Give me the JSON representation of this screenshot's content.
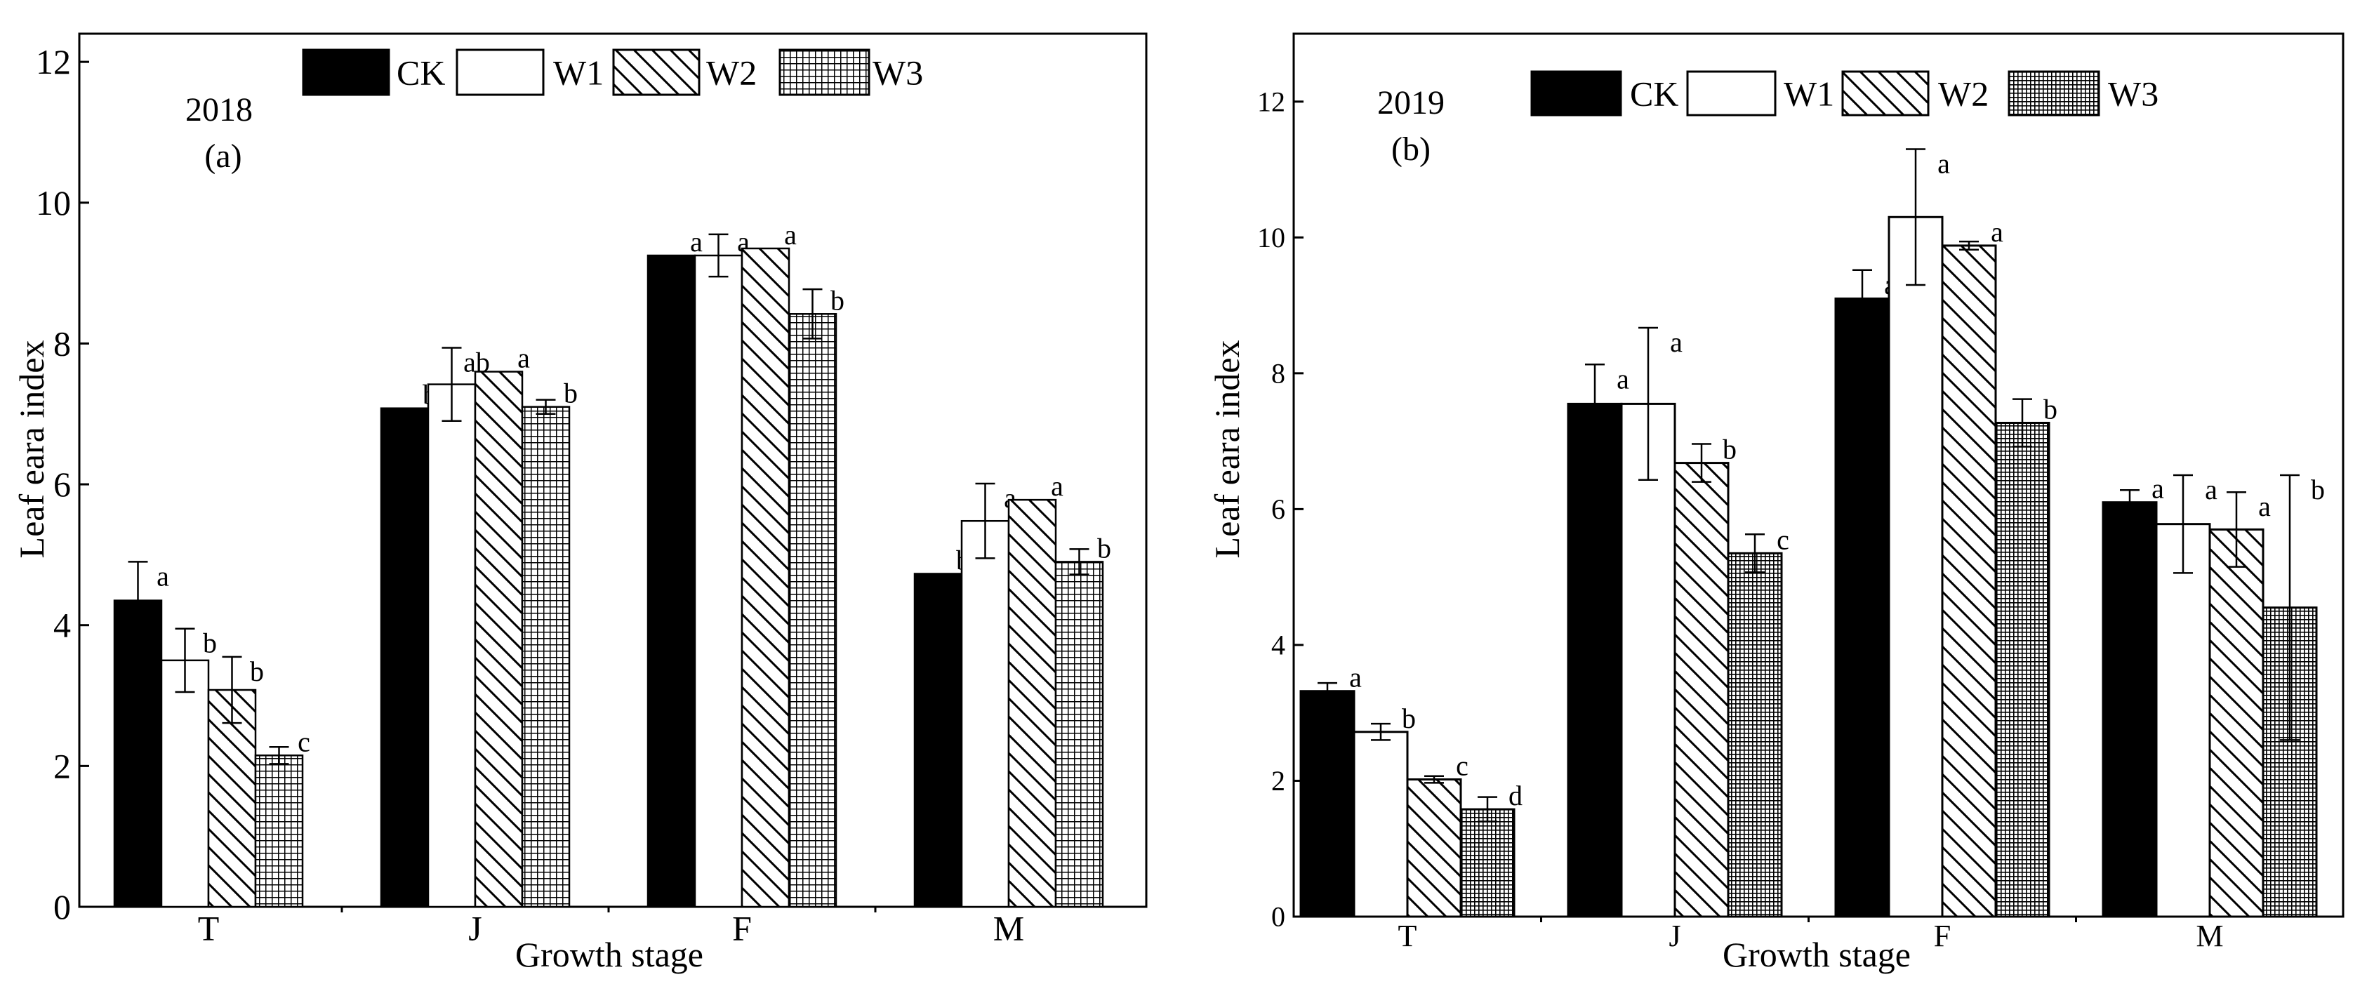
{
  "figure": {
    "groups": [
      "CK",
      "W1",
      "W2",
      "W3"
    ],
    "patterns": {
      "CK": "solid-black",
      "W1": "white",
      "W2": "diagonal-hatch",
      "W3": "grid-crosshatch"
    }
  },
  "chart_data": [
    {
      "type": "bar",
      "panel_label": "(a)",
      "year_label": "2018",
      "xlabel": "Growth stage",
      "ylabel": "Leaf eara index",
      "categories": [
        "T",
        "J",
        "F",
        "M"
      ],
      "ylim": [
        0,
        12.4
      ],
      "yticks": [
        0,
        2,
        4,
        6,
        8,
        10,
        12
      ],
      "ytick_labels": [
        "0",
        "2",
        "4",
        "6",
        "8",
        "10",
        "12"
      ],
      "legend": [
        "CK",
        "W1",
        "W2",
        "W3"
      ],
      "legend_position": "top",
      "series": [
        {
          "name": "CK",
          "values": [
            4.35,
            7.08,
            9.25,
            4.73
          ],
          "errors": [
            0.55,
            0,
            0,
            0
          ],
          "letters": [
            "a",
            "b",
            "a",
            "b"
          ]
        },
        {
          "name": "W1",
          "values": [
            3.5,
            7.42,
            9.25,
            5.48
          ],
          "errors": [
            0.45,
            0.52,
            0.3,
            0.53
          ],
          "letters": [
            "b",
            "ab",
            "a",
            "a"
          ]
        },
        {
          "name": "W2",
          "values": [
            3.08,
            7.6,
            9.35,
            5.78
          ],
          "errors": [
            0.47,
            0,
            0,
            0
          ],
          "letters": [
            "b",
            "a",
            "a",
            "a"
          ]
        },
        {
          "name": "W3",
          "values": [
            2.15,
            7.1,
            8.42,
            4.9
          ],
          "errors": [
            0.12,
            0.1,
            0.35,
            0.18
          ],
          "letters": [
            "c",
            "b",
            "b",
            "b"
          ]
        }
      ]
    },
    {
      "type": "bar",
      "panel_label": "(b)",
      "year_label": "2019",
      "xlabel": "Growth stage",
      "ylabel": "Leaf eara index",
      "categories": [
        "T",
        "J",
        "F",
        "M"
      ],
      "ylim": [
        0,
        13
      ],
      "yticks": [
        0,
        2,
        4,
        6,
        8,
        10,
        12
      ],
      "ytick_labels": [
        "0",
        "2",
        "4",
        "6",
        "8",
        "10",
        "12"
      ],
      "legend": [
        "CK",
        "W1",
        "W2",
        "W3"
      ],
      "legend_position": "top",
      "series": [
        {
          "name": "CK",
          "values": [
            3.32,
            7.55,
            9.1,
            6.1
          ],
          "errors": [
            0.12,
            0.58,
            0.42,
            0.18
          ],
          "letters": [
            "a",
            "a",
            "a",
            "a"
          ]
        },
        {
          "name": "W1",
          "values": [
            2.72,
            7.55,
            10.3,
            5.78
          ],
          "errors": [
            0.12,
            1.12,
            1.0,
            0.72
          ],
          "letters": [
            "b",
            "a",
            "a",
            "a"
          ]
        },
        {
          "name": "W2",
          "values": [
            2.02,
            6.68,
            9.88,
            5.7
          ],
          "errors": [
            0.05,
            0.28,
            0.06,
            0.55
          ],
          "letters": [
            "c",
            "b",
            "a",
            "a"
          ]
        },
        {
          "name": "W3",
          "values": [
            1.58,
            5.35,
            7.27,
            4.55
          ],
          "errors": [
            0.18,
            0.28,
            0.35,
            1.95
          ],
          "letters": [
            "d",
            "c",
            "b",
            "b"
          ]
        }
      ]
    }
  ]
}
